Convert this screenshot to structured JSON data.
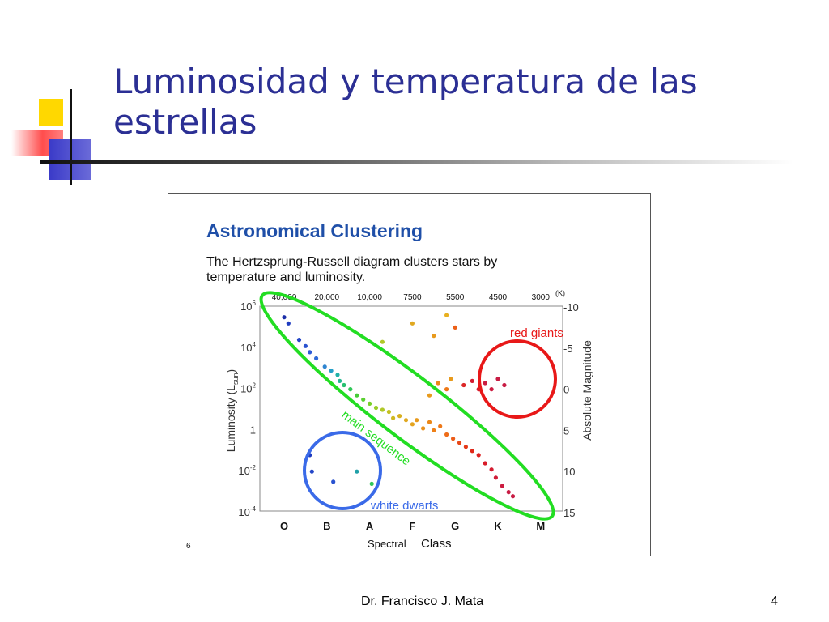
{
  "slide": {
    "title": "Luminosidad y temperatura de las estrellas",
    "footer_author": "Dr. Francisco J. Mata",
    "page_number": "4"
  },
  "colors": {
    "title": "#2b2f94",
    "main_sequence": "#22dd22",
    "red_giants": "#e81818",
    "white_dwarfs": "#3a6ae8",
    "figure_heading": "#1f4fa8"
  },
  "chart_data": {
    "type": "scatter",
    "title": "Astronomical Clustering",
    "subtitle_line1": "The Hertzsprung-Russell diagram clusters stars by",
    "subtitle_line2": "temperature and luminosity.",
    "figure_number": "6",
    "xlabel_part1": "Spectral",
    "xlabel_part2": "Class",
    "ylabel_left": "Luminosity (L",
    "ylabel_left_sub": "sun",
    "ylabel_left_end": ")",
    "ylabel_right": "Absolute Magnitude",
    "top_axis_unit": "(K)",
    "x_categories": [
      "O",
      "B",
      "A",
      "F",
      "G",
      "K",
      "M"
    ],
    "top_ticks": [
      "40,000",
      "20,000",
      "10,000",
      "7500",
      "5500",
      "4500",
      "3000"
    ],
    "left_ticks": [
      {
        "base": "10",
        "exp": "6",
        "log": 6
      },
      {
        "base": "10",
        "exp": "4",
        "log": 4
      },
      {
        "base": "10",
        "exp": "2",
        "log": 2
      },
      {
        "base": "1",
        "exp": "",
        "log": 0
      },
      {
        "base": "10",
        "exp": "-2",
        "log": -2
      },
      {
        "base": "10",
        "exp": "-4",
        "log": -4
      }
    ],
    "right_ticks": [
      "-10",
      "-5",
      "0",
      "5",
      "10",
      "15"
    ],
    "ylim_log": [
      -4,
      6
    ],
    "annotations": {
      "red_giants": "red giants",
      "main_sequence": "main sequence",
      "white_dwarfs": "white dwarfs"
    },
    "points": [
      {
        "cls": 0.0,
        "logL": 5.5,
        "color": "#1b2fa8"
      },
      {
        "cls": 0.1,
        "logL": 5.2,
        "color": "#1f3cc0"
      },
      {
        "cls": 0.35,
        "logL": 4.4,
        "color": "#2446c8"
      },
      {
        "cls": 0.5,
        "logL": 4.1,
        "color": "#2952d0"
      },
      {
        "cls": 0.6,
        "logL": 3.8,
        "color": "#2e5cd8"
      },
      {
        "cls": 0.75,
        "logL": 3.5,
        "color": "#2f6ad8"
      },
      {
        "cls": 0.95,
        "logL": 3.1,
        "color": "#2f85d0"
      },
      {
        "cls": 1.1,
        "logL": 2.9,
        "color": "#24a0c8"
      },
      {
        "cls": 1.25,
        "logL": 2.7,
        "color": "#20b2a8"
      },
      {
        "cls": 1.3,
        "logL": 2.4,
        "color": "#22b890"
      },
      {
        "cls": 1.4,
        "logL": 2.2,
        "color": "#28c070"
      },
      {
        "cls": 1.55,
        "logL": 2.0,
        "color": "#30c858"
      },
      {
        "cls": 1.7,
        "logL": 1.7,
        "color": "#46cc38"
      },
      {
        "cls": 1.85,
        "logL": 1.5,
        "color": "#5ad030"
      },
      {
        "cls": 2.0,
        "logL": 1.3,
        "color": "#78d028"
      },
      {
        "cls": 2.15,
        "logL": 1.1,
        "color": "#98cc28"
      },
      {
        "cls": 2.3,
        "logL": 1.0,
        "color": "#b0c828"
      },
      {
        "cls": 2.45,
        "logL": 0.9,
        "color": "#c4c020"
      },
      {
        "cls": 2.55,
        "logL": 0.6,
        "color": "#cfb820"
      },
      {
        "cls": 2.7,
        "logL": 0.7,
        "color": "#d8b020"
      },
      {
        "cls": 2.85,
        "logL": 0.5,
        "color": "#e0a820"
      },
      {
        "cls": 3.0,
        "logL": 0.3,
        "color": "#e4a420"
      },
      {
        "cls": 3.1,
        "logL": 0.5,
        "color": "#e89a1c"
      },
      {
        "cls": 3.25,
        "logL": 0.1,
        "color": "#ea901c"
      },
      {
        "cls": 3.4,
        "logL": 0.4,
        "color": "#ec8818"
      },
      {
        "cls": 3.5,
        "logL": 0.0,
        "color": "#ee8018"
      },
      {
        "cls": 3.65,
        "logL": 0.2,
        "color": "#ee7818"
      },
      {
        "cls": 3.8,
        "logL": -0.2,
        "color": "#ee6c18"
      },
      {
        "cls": 3.95,
        "logL": -0.4,
        "color": "#ec5c18"
      },
      {
        "cls": 4.1,
        "logL": -0.6,
        "color": "#e84818"
      },
      {
        "cls": 4.25,
        "logL": -0.8,
        "color": "#e43818"
      },
      {
        "cls": 4.4,
        "logL": -1.0,
        "color": "#e02818"
      },
      {
        "cls": 4.55,
        "logL": -1.2,
        "color": "#dc2020"
      },
      {
        "cls": 4.7,
        "logL": -1.6,
        "color": "#d81c28"
      },
      {
        "cls": 4.85,
        "logL": -1.9,
        "color": "#d41c30"
      },
      {
        "cls": 4.95,
        "logL": -2.3,
        "color": "#d01c38"
      },
      {
        "cls": 5.1,
        "logL": -2.7,
        "color": "#cc1c40"
      },
      {
        "cls": 5.25,
        "logL": -3.0,
        "color": "#c81c44"
      },
      {
        "cls": 5.35,
        "logL": -3.2,
        "color": "#c81c44"
      },
      {
        "cls": 3.4,
        "logL": 1.7,
        "color": "#e89a1c"
      },
      {
        "cls": 3.6,
        "logL": 2.3,
        "color": "#ec8818"
      },
      {
        "cls": 3.8,
        "logL": 2.0,
        "color": "#ee7818"
      },
      {
        "cls": 3.9,
        "logL": 2.5,
        "color": "#e89a1c"
      },
      {
        "cls": 4.2,
        "logL": 2.2,
        "color": "#dc2828"
      },
      {
        "cls": 4.4,
        "logL": 2.4,
        "color": "#d41c30"
      },
      {
        "cls": 4.55,
        "logL": 2.0,
        "color": "#d41c30"
      },
      {
        "cls": 4.7,
        "logL": 2.3,
        "color": "#cc1c40"
      },
      {
        "cls": 4.85,
        "logL": 2.0,
        "color": "#cc1c40"
      },
      {
        "cls": 5.0,
        "logL": 2.5,
        "color": "#c81c44"
      },
      {
        "cls": 5.15,
        "logL": 2.2,
        "color": "#c81c44"
      },
      {
        "cls": 3.0,
        "logL": 5.2,
        "color": "#e0a820"
      },
      {
        "cls": 3.5,
        "logL": 4.6,
        "color": "#e89a1c"
      },
      {
        "cls": 4.0,
        "logL": 5.0,
        "color": "#ec6018"
      },
      {
        "cls": 2.3,
        "logL": 4.3,
        "color": "#b0c828"
      },
      {
        "cls": 3.8,
        "logL": 5.6,
        "color": "#e8b020"
      },
      {
        "cls": 0.6,
        "logL": -1.2,
        "color": "#1f3cc0"
      },
      {
        "cls": 0.65,
        "logL": -2.0,
        "color": "#2446c8"
      },
      {
        "cls": 1.15,
        "logL": -2.5,
        "color": "#2952d0"
      },
      {
        "cls": 1.7,
        "logL": -2.0,
        "color": "#20a0a8"
      },
      {
        "cls": 2.05,
        "logL": -2.6,
        "color": "#30c858"
      }
    ]
  }
}
